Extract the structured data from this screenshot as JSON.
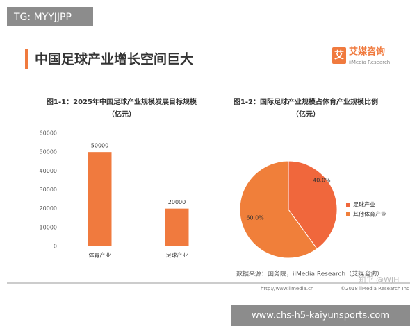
{
  "page": {
    "tag": "TG: MYYJJPP",
    "heading": "中国足球产业增长空间巨大",
    "logo_cn": "艾媒咨询",
    "logo_icon": "艾",
    "logo_en": "iiMedia Research",
    "source": "数据来源：国务院，iiMedia Research（艾媒咨询）",
    "footer_url": "http://www.iimedia.cn",
    "footer_copy": "©2018 iiMedia Research Inc",
    "watermark": "知乎 @WJH",
    "overlay": "www.chs-h5-kaiyunsports.com"
  },
  "chart_data": [
    {
      "type": "bar",
      "title": "图1-1：2025年中国足球产业规模发展目标规模",
      "subtitle": "（亿元）",
      "categories": [
        "体育产业",
        "足球产业"
      ],
      "values": [
        50000,
        20000
      ],
      "color": "#f07a3e",
      "ylim": [
        0,
        60000
      ],
      "yticks": [
        0,
        10000,
        20000,
        30000,
        40000,
        50000,
        60000
      ],
      "grid": false
    },
    {
      "type": "pie",
      "title": "图1-2：国际足球产业规模占体育产业规模比例",
      "subtitle": "（亿元）",
      "categories": [
        "足球产业",
        "其他体育产业"
      ],
      "values": [
        40,
        60
      ],
      "value_labels": [
        "40.0%",
        "60.0%"
      ],
      "colors": [
        "#f0673c",
        "#f07f3a"
      ],
      "legend": "right"
    }
  ]
}
